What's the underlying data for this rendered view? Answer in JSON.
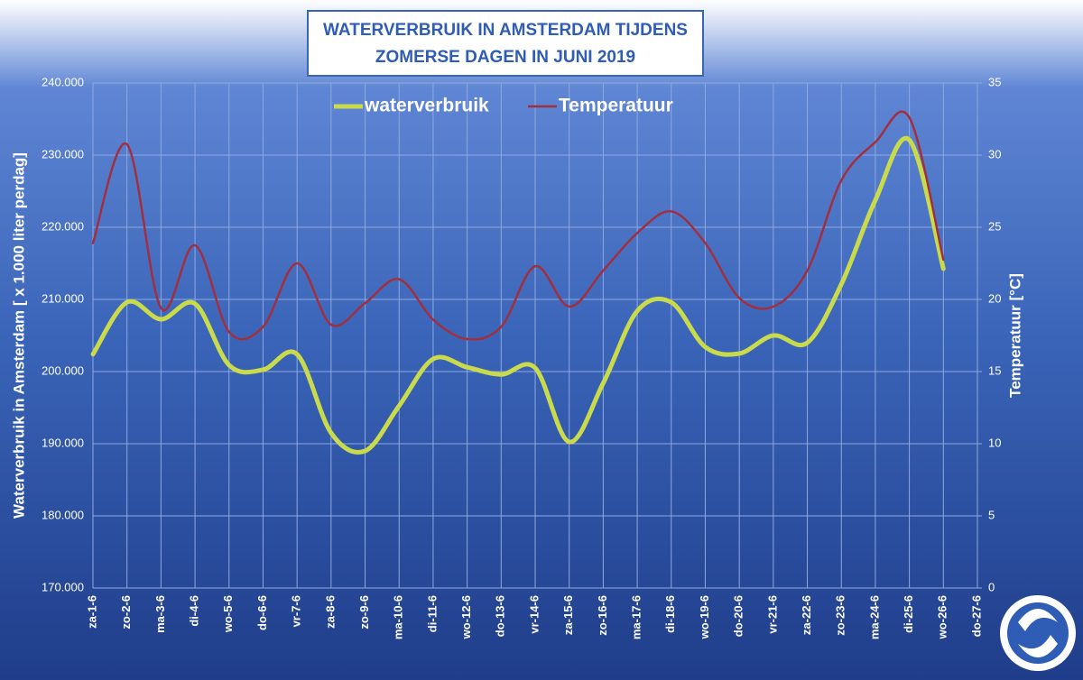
{
  "chart_data": {
    "type": "line",
    "title": [
      "WATERVERBRUIK  IN  AMSTERDAM  TIJDENS",
      "ZOMERSE DAGEN IN JUNI 2019"
    ],
    "ylabel": "Waterverbruik in Amsterdam [ x 1.000 liter perdag]",
    "y2label": "Temperatuur [°C]",
    "categories": [
      "za-1-6",
      "zo-2-6",
      "ma-3-6",
      "di-4-6",
      "wo-5-6",
      "do-6-6",
      "vr-7-6",
      "za-8-6",
      "zo-9-6",
      "ma-10-6",
      "di-11-6",
      "wo-12-6",
      "do-13-6",
      "vr-14-6",
      "za-15-6",
      "zo-16-6",
      "ma-17-6",
      "di-18-6",
      "wo-19-6",
      "do-20-6",
      "vr-21-6",
      "za-22-6",
      "zo-23-6",
      "ma-24-6",
      "di-25-6",
      "wo-26-6",
      "do-27-6"
    ],
    "series": [
      {
        "name": "waterverbruik",
        "color": "#c9da4c",
        "axis": "y",
        "values": [
          202400,
          209600,
          207250,
          209400,
          200900,
          200250,
          202400,
          191500,
          189000,
          195250,
          201750,
          200600,
          199600,
          200500,
          190250,
          198400,
          208400,
          209600,
          203400,
          202500,
          205000,
          204000,
          212100,
          223750,
          232100,
          214250,
          null
        ]
      },
      {
        "name": "Temperatuur",
        "color": "#a0303f",
        "axis": "y2",
        "values": [
          23.9,
          30.75,
          19.4,
          23.75,
          17.75,
          18.1,
          22.5,
          18.25,
          19.75,
          21.4,
          18.6,
          17.25,
          18.1,
          22.3,
          19.5,
          22,
          24.6,
          26.1,
          23.9,
          20.1,
          19.5,
          22,
          28.25,
          30.9,
          32.6,
          22.75,
          null
        ]
      }
    ],
    "ylim": [
      170000,
      240000
    ],
    "yticks": [
      {
        "value": 170000,
        "label": "170.000"
      },
      {
        "value": 180000,
        "label": "180.000"
      },
      {
        "value": 190000,
        "label": "190.000"
      },
      {
        "value": 200000,
        "label": "200.000"
      },
      {
        "value": 210000,
        "label": "210.000"
      },
      {
        "value": 220000,
        "label": "220.000"
      },
      {
        "value": 230000,
        "label": "230.000"
      },
      {
        "value": 240000,
        "label": "240.000"
      }
    ],
    "y2lim": [
      0,
      35
    ],
    "y2ticks": [
      0,
      5,
      10,
      15,
      20,
      25,
      30,
      35
    ],
    "grid": true
  }
}
